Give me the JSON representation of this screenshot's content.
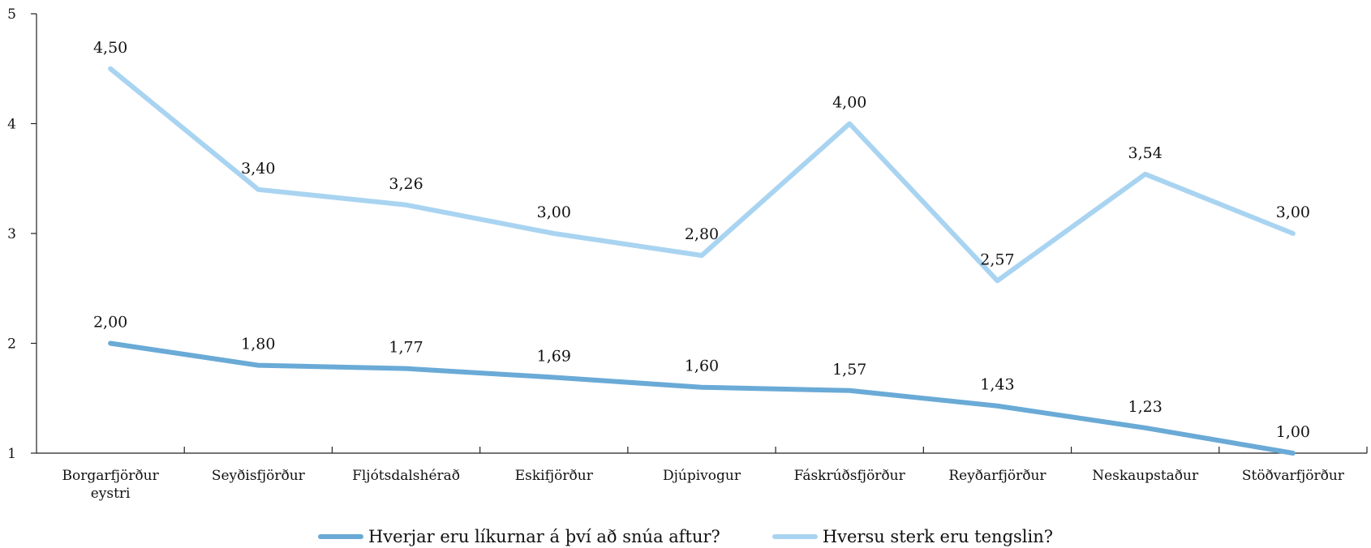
{
  "chart_data": {
    "type": "line",
    "categories": [
      [
        "Borgarfjörður",
        "eystri"
      ],
      [
        "Seyðisfjörður"
      ],
      [
        "Fljótsdalshérað"
      ],
      [
        "Eskifjörður"
      ],
      [
        "Djúpivogur"
      ],
      [
        "Fáskrúðsfjörður"
      ],
      [
        "Reyðarfjörður"
      ],
      [
        "Neskaupstaður"
      ],
      [
        "Stöðvarfjörður"
      ]
    ],
    "series": [
      {
        "name": "Hverjar eru líkurnar á því að snúa aftur?",
        "color": "#6aaad6",
        "values": [
          2.0,
          1.8,
          1.77,
          1.69,
          1.6,
          1.57,
          1.43,
          1.23,
          1.0
        ],
        "labels": [
          "2,00",
          "1,80",
          "1,77",
          "1,69",
          "1,60",
          "1,57",
          "1,43",
          "1,23",
          "1,00"
        ]
      },
      {
        "name": "Hversu sterk eru tengslin?",
        "color": "#a9d4f1",
        "values": [
          4.5,
          3.4,
          3.26,
          3.0,
          2.8,
          4.0,
          2.57,
          3.54,
          3.0
        ],
        "labels": [
          "4,50",
          "3,40",
          "3,26",
          "3,00",
          "2,80",
          "4,00",
          "2,57",
          "3,54",
          "3,00"
        ]
      }
    ],
    "yticks": [
      "1",
      "2",
      "3",
      "4",
      "5"
    ],
    "ylim": [
      1,
      5
    ],
    "grid": false,
    "legend_position": "bottom"
  }
}
